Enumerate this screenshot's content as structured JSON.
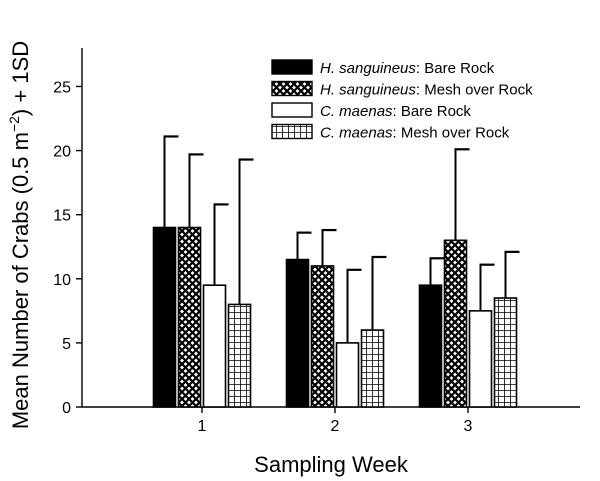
{
  "chart_data": {
    "type": "bar",
    "categories": [
      "1",
      "2",
      "3"
    ],
    "xlabel": "Sampling Week",
    "ylabel": {
      "text": "Mean Number of Crabs (0.5 m",
      "superscript": "−2",
      "suffix": ") + 1SD"
    },
    "ylim": [
      0,
      28
    ],
    "yticks": [
      0,
      5,
      10,
      15,
      20,
      25
    ],
    "grid": false,
    "legend_position": "top-right",
    "series": [
      {
        "species": "H. sanguineus",
        "treatment": ": Bare Rock",
        "fill": "solid-black",
        "values": [
          14,
          11.5,
          9.5
        ],
        "sd_upper": [
          21.1,
          13.6,
          11.6
        ]
      },
      {
        "species": "H. sanguineus",
        "treatment": ": Mesh over Rock",
        "fill": "crosshatch",
        "values": [
          14,
          11,
          13
        ],
        "sd_upper": [
          19.7,
          13.8,
          20.1
        ]
      },
      {
        "species": "C. maenas",
        "treatment": ": Bare Rock",
        "fill": "white",
        "values": [
          9.5,
          5,
          7.5
        ],
        "sd_upper": [
          15.8,
          10.7,
          11.1
        ]
      },
      {
        "species": "C. maenas",
        "treatment": ": Mesh over Rock",
        "fill": "grid",
        "values": [
          8,
          6,
          8.5
        ],
        "sd_upper": [
          19.3,
          11.7,
          12.1
        ]
      }
    ],
    "colors": {
      "ink": "#000000",
      "background": "#ffffff"
    }
  }
}
